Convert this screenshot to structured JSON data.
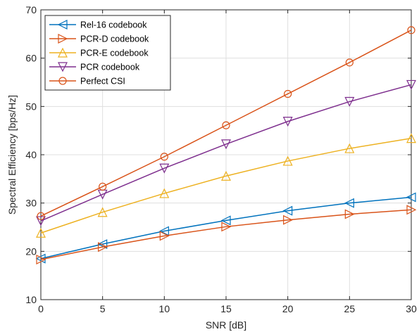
{
  "chart_data": {
    "type": "line",
    "xlabel": "SNR [dB]",
    "ylabel": "Spectral Efficiency [bps/Hz]",
    "xlim": [
      0,
      30
    ],
    "ylim": [
      10,
      70
    ],
    "xticks": [
      0,
      5,
      10,
      15,
      20,
      25,
      30
    ],
    "yticks": [
      10,
      20,
      30,
      40,
      50,
      60,
      70
    ],
    "grid": true,
    "legend_position": "top-left",
    "x": [
      0,
      5,
      10,
      15,
      20,
      25,
      30
    ],
    "series": [
      {
        "name": "Rel-16 codebook",
        "color": "#0072BD",
        "marker": "triangle-left",
        "values": [
          18.5,
          21.5,
          24.2,
          26.4,
          28.4,
          30.0,
          31.2
        ]
      },
      {
        "name": "PCR-D codebook",
        "color": "#D95319",
        "marker": "triangle-right",
        "values": [
          18.3,
          20.9,
          23.2,
          25.1,
          26.5,
          27.7,
          28.6
        ]
      },
      {
        "name": "PCR-E codebook",
        "color": "#EDB120",
        "marker": "triangle-up",
        "values": [
          23.8,
          28.1,
          32.0,
          35.6,
          38.7,
          41.3,
          43.4
        ]
      },
      {
        "name": "PCR codebook",
        "color": "#7E2F8E",
        "marker": "triangle-down",
        "values": [
          26.3,
          31.8,
          37.2,
          42.2,
          46.9,
          51.0,
          54.5
        ]
      },
      {
        "name": "Perfect CSI",
        "color": "#D95319",
        "marker": "circle",
        "values": [
          27.3,
          33.4,
          39.6,
          46.1,
          52.6,
          59.1,
          65.8
        ]
      }
    ]
  }
}
